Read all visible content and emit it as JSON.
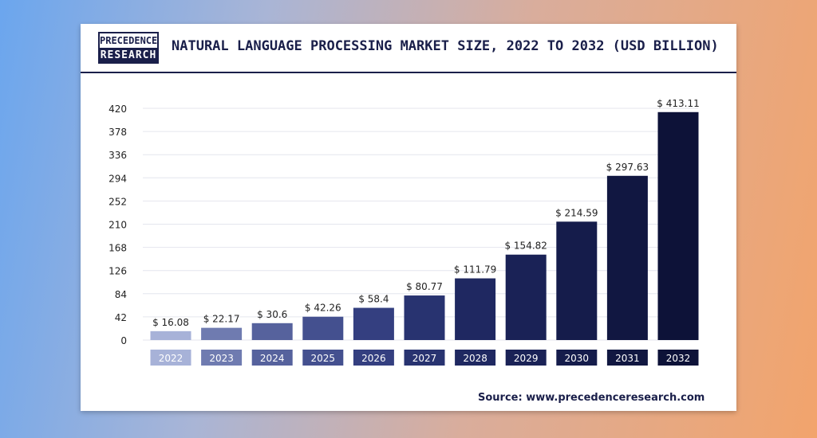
{
  "header": {
    "logo_top": "PRECEDENCE",
    "logo_bottom": "RESEARCH",
    "title": "NATURAL LANGUAGE PROCESSING MARKET SIZE, 2022 TO 2032 (USD BILLION)"
  },
  "source": "Source: www.precedenceresearch.com",
  "chart_data": {
    "type": "bar",
    "title": "NATURAL LANGUAGE PROCESSING MARKET SIZE, 2022 TO 2032 (USD BILLION)",
    "categories": [
      "2022",
      "2023",
      "2024",
      "2025",
      "2026",
      "2027",
      "2028",
      "2029",
      "2030",
      "2031",
      "2032"
    ],
    "values": [
      16.08,
      22.17,
      30.6,
      42.26,
      58.4,
      80.77,
      111.79,
      154.82,
      214.59,
      297.63,
      413.11
    ],
    "value_labels": [
      "$ 16.08",
      "$ 22.17",
      "$ 30.6",
      "$ 42.26",
      "$ 58.4",
      "$ 80.77",
      "$ 111.79",
      "$ 154.82",
      "$ 214.59",
      "$ 297.63",
      "$ 413.11"
    ],
    "yticks": [
      0,
      42,
      84,
      126,
      168,
      210,
      252,
      294,
      336,
      378,
      420
    ],
    "ylim": [
      0,
      420
    ],
    "grid": true,
    "legend": "none",
    "colors": [
      "#a7b2d8",
      "#6f7bb0",
      "#56629d",
      "#44508f",
      "#343f80",
      "#283370",
      "#1f2861",
      "#1a2256",
      "#151c4b",
      "#111741",
      "#0d1238"
    ]
  }
}
